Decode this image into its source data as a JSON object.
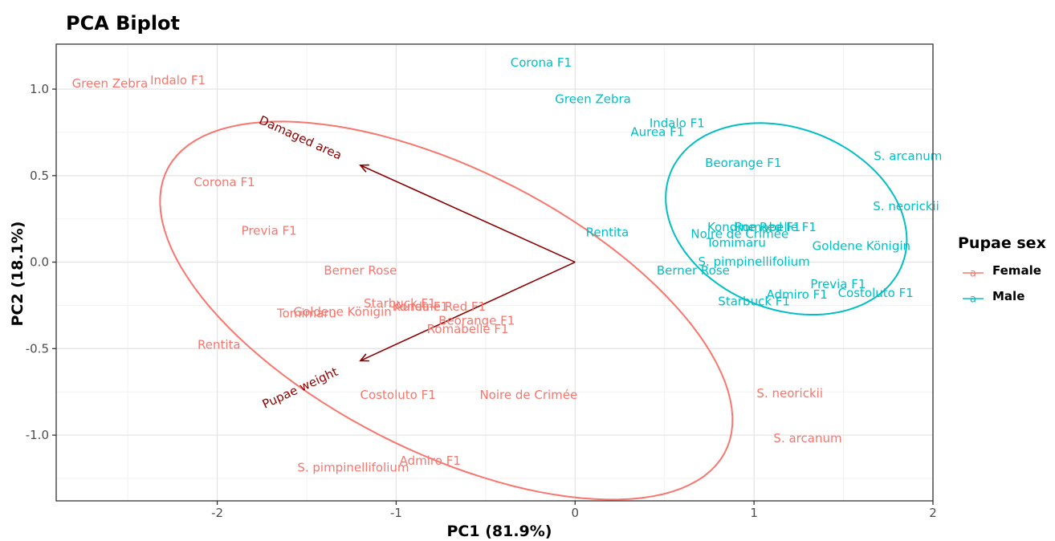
{
  "chart_data": {
    "type": "scatter",
    "title": "PCA Biplot",
    "xlabel": "PC1 (81.9%)",
    "ylabel": "PC2 (18.1%)",
    "xlim": [
      -2.9,
      2.0
    ],
    "ylim": [
      -1.38,
      1.26
    ],
    "x_ticks": [
      -2,
      -1,
      0,
      1,
      2
    ],
    "y_ticks": [
      1.0,
      0.5,
      0.0,
      -0.5,
      -1.0
    ],
    "x_tick_labels": [
      "-2",
      "-1",
      "0",
      "1",
      "2"
    ],
    "y_tick_labels": [
      "1.0",
      "0.5",
      "0.0",
      "-0.5",
      "-1.0"
    ],
    "grid": true,
    "legend": {
      "title": "Pupae sex",
      "position": "right",
      "entries": [
        {
          "label": "Female",
          "color": "#F8766D",
          "key": "a"
        },
        {
          "label": "Male",
          "color": "#00BFC4",
          "key": "a"
        }
      ]
    },
    "series": [
      {
        "name": "Female",
        "color": "#F8766D",
        "points": [
          {
            "label": "Green Zebra",
            "x": -2.6,
            "y": 1.03
          },
          {
            "label": "Indalo F1",
            "x": -2.22,
            "y": 1.05
          },
          {
            "label": "Corona F1",
            "x": -1.96,
            "y": 0.46
          },
          {
            "label": "Previa F1",
            "x": -1.71,
            "y": 0.18
          },
          {
            "label": "Berner Rose",
            "x": -1.2,
            "y": -0.05
          },
          {
            "label": "Tomimaru",
            "x": -1.5,
            "y": -0.3
          },
          {
            "label": "Goldene Königin",
            "x": -1.3,
            "y": -0.29
          },
          {
            "label": "Starbuck F1",
            "x": -0.98,
            "y": -0.24
          },
          {
            "label": "Aurea F1",
            "x": -0.86,
            "y": -0.26
          },
          {
            "label": "Kondine Red F1",
            "x": -0.76,
            "y": -0.26
          },
          {
            "label": "Beorange F1",
            "x": -0.55,
            "y": -0.34
          },
          {
            "label": "Romabelle F1",
            "x": -0.6,
            "y": -0.39
          },
          {
            "label": "Rentita",
            "x": -1.99,
            "y": -0.48
          },
          {
            "label": "Costoluto F1",
            "x": -0.99,
            "y": -0.77
          },
          {
            "label": "Noire de Crimée",
            "x": -0.26,
            "y": -0.77
          },
          {
            "label": "S. neorickii",
            "x": 1.2,
            "y": -0.76
          },
          {
            "label": "S. arcanum",
            "x": 1.3,
            "y": -1.02
          },
          {
            "label": "Admiro F1",
            "x": -0.81,
            "y": -1.15
          },
          {
            "label": "S. pimpinellifolium",
            "x": -1.24,
            "y": -1.19
          }
        ],
        "ellipse": {
          "cx": -0.72,
          "cy": -0.28,
          "rx": 1.76,
          "ry": 0.81,
          "angle_deg": -28
        }
      },
      {
        "name": "Male",
        "color": "#00BFC4",
        "points": [
          {
            "label": "Corona F1",
            "x": -0.19,
            "y": 1.15
          },
          {
            "label": "Green Zebra",
            "x": 0.1,
            "y": 0.94
          },
          {
            "label": "Indalo F1",
            "x": 0.57,
            "y": 0.8
          },
          {
            "label": "Aurea F1",
            "x": 0.46,
            "y": 0.75
          },
          {
            "label": "S. arcanum",
            "x": 1.86,
            "y": 0.61
          },
          {
            "label": "Beorange F1",
            "x": 0.94,
            "y": 0.57
          },
          {
            "label": "S. neorickii",
            "x": 1.85,
            "y": 0.32
          },
          {
            "label": "Kondine Red F1",
            "x": 1.0,
            "y": 0.2
          },
          {
            "label": "Romabelle F1",
            "x": 1.12,
            "y": 0.2
          },
          {
            "label": "Noire de Crimée",
            "x": 0.92,
            "y": 0.16
          },
          {
            "label": "Tomimaru",
            "x": 0.9,
            "y": 0.11
          },
          {
            "label": "Rentita",
            "x": 0.18,
            "y": 0.17
          },
          {
            "label": "Goldene Königin",
            "x": 1.6,
            "y": 0.09
          },
          {
            "label": "S. pimpinellifolium",
            "x": 1.0,
            "y": 0.0
          },
          {
            "label": "Berner Rose",
            "x": 0.66,
            "y": -0.05
          },
          {
            "label": "Previa F1",
            "x": 1.47,
            "y": -0.13
          },
          {
            "label": "Admiro F1",
            "x": 1.24,
            "y": -0.19
          },
          {
            "label": "Costoluto F1",
            "x": 1.68,
            "y": -0.18
          },
          {
            "label": "Starbuck F1",
            "x": 1.0,
            "y": -0.23
          }
        ],
        "ellipse": {
          "cx": 1.18,
          "cy": 0.25,
          "rx": 0.7,
          "ry": 0.52,
          "angle_deg": -24
        }
      }
    ],
    "loadings": [
      {
        "label": "Damaged area",
        "x": -1.2,
        "y": 0.56
      },
      {
        "label": "Pupae weight",
        "x": -1.2,
        "y": -0.57
      }
    ],
    "loading_color": "#8B0000"
  }
}
